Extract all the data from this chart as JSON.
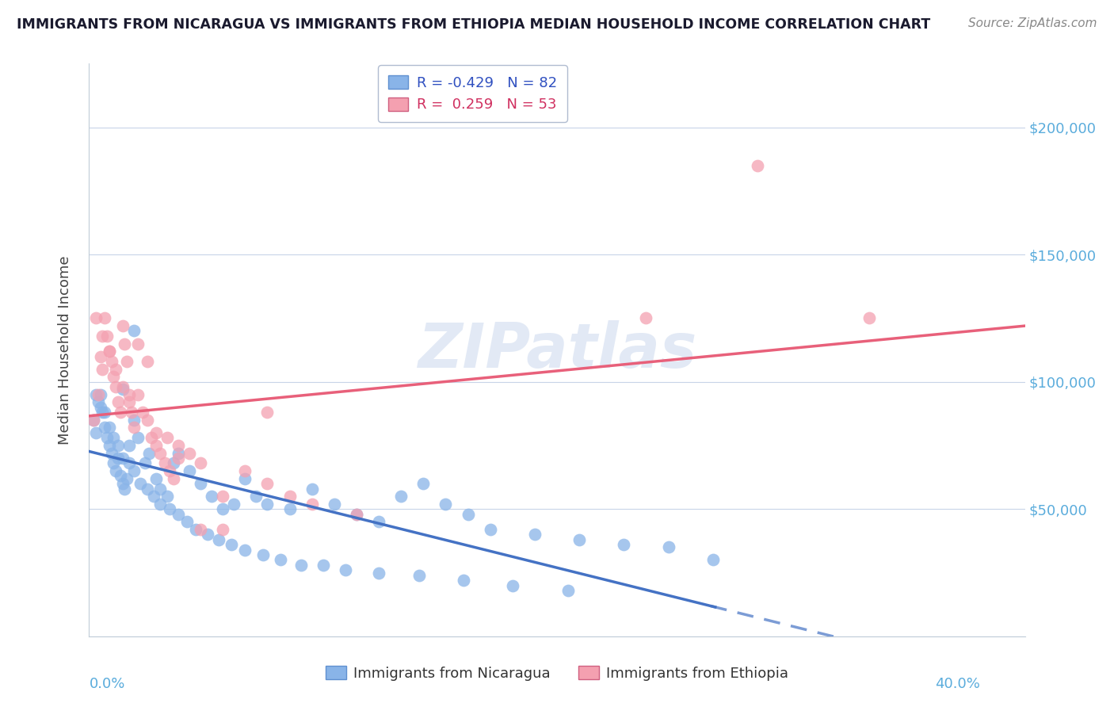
{
  "title": "IMMIGRANTS FROM NICARAGUA VS IMMIGRANTS FROM ETHIOPIA MEDIAN HOUSEHOLD INCOME CORRELATION CHART",
  "source": "Source: ZipAtlas.com",
  "ylabel": "Median Household Income",
  "watermark": "ZIPatlas",
  "xlim": [
    0.0,
    0.42
  ],
  "ylim": [
    0,
    225000
  ],
  "yticks": [
    0,
    50000,
    100000,
    150000,
    200000
  ],
  "ytick_labels": [
    "",
    "$50,000",
    "$100,000",
    "$150,000",
    "$200,000"
  ],
  "blue_color": "#89b4e8",
  "pink_color": "#f4a0b0",
  "blue_line_color": "#4472c4",
  "pink_line_color": "#e8607a",
  "R_nic": -0.429,
  "N_nic": 82,
  "R_eth": 0.259,
  "N_eth": 53,
  "label_nic": "Immigrants from Nicaragua",
  "label_eth": "Immigrants from Ethiopia",
  "nicaragua_x": [
    0.002,
    0.003,
    0.004,
    0.005,
    0.006,
    0.007,
    0.008,
    0.009,
    0.01,
    0.011,
    0.012,
    0.013,
    0.014,
    0.015,
    0.016,
    0.017,
    0.018,
    0.02,
    0.022,
    0.025,
    0.027,
    0.03,
    0.032,
    0.035,
    0.038,
    0.04,
    0.045,
    0.05,
    0.055,
    0.06,
    0.065,
    0.07,
    0.075,
    0.08,
    0.09,
    0.1,
    0.11,
    0.12,
    0.13,
    0.14,
    0.15,
    0.16,
    0.17,
    0.18,
    0.2,
    0.22,
    0.24,
    0.26,
    0.28,
    0.003,
    0.005,
    0.007,
    0.009,
    0.011,
    0.013,
    0.015,
    0.018,
    0.02,
    0.023,
    0.026,
    0.029,
    0.032,
    0.036,
    0.04,
    0.044,
    0.048,
    0.053,
    0.058,
    0.064,
    0.07,
    0.078,
    0.086,
    0.095,
    0.105,
    0.115,
    0.13,
    0.148,
    0.168,
    0.19,
    0.215,
    0.02,
    0.015
  ],
  "nicaragua_y": [
    85000,
    80000,
    92000,
    95000,
    88000,
    82000,
    78000,
    75000,
    72000,
    68000,
    65000,
    70000,
    63000,
    60000,
    58000,
    62000,
    75000,
    85000,
    78000,
    68000,
    72000,
    62000,
    58000,
    55000,
    68000,
    72000,
    65000,
    60000,
    55000,
    50000,
    52000,
    62000,
    55000,
    52000,
    50000,
    58000,
    52000,
    48000,
    45000,
    55000,
    60000,
    52000,
    48000,
    42000,
    40000,
    38000,
    36000,
    35000,
    30000,
    95000,
    90000,
    88000,
    82000,
    78000,
    75000,
    70000,
    68000,
    65000,
    60000,
    58000,
    55000,
    52000,
    50000,
    48000,
    45000,
    42000,
    40000,
    38000,
    36000,
    34000,
    32000,
    30000,
    28000,
    28000,
    26000,
    25000,
    24000,
    22000,
    20000,
    18000,
    120000,
    97000
  ],
  "ethiopia_x": [
    0.002,
    0.004,
    0.005,
    0.006,
    0.007,
    0.008,
    0.009,
    0.01,
    0.011,
    0.012,
    0.013,
    0.014,
    0.015,
    0.016,
    0.017,
    0.018,
    0.019,
    0.02,
    0.022,
    0.024,
    0.026,
    0.028,
    0.03,
    0.032,
    0.034,
    0.036,
    0.038,
    0.04,
    0.045,
    0.05,
    0.06,
    0.07,
    0.08,
    0.09,
    0.1,
    0.12,
    0.003,
    0.006,
    0.009,
    0.012,
    0.015,
    0.018,
    0.022,
    0.026,
    0.03,
    0.035,
    0.04,
    0.05,
    0.06,
    0.08,
    0.3,
    0.35,
    0.25
  ],
  "ethiopia_y": [
    85000,
    95000,
    110000,
    105000,
    125000,
    118000,
    112000,
    108000,
    102000,
    98000,
    92000,
    88000,
    122000,
    115000,
    108000,
    95000,
    88000,
    82000,
    95000,
    88000,
    85000,
    78000,
    75000,
    72000,
    68000,
    65000,
    62000,
    75000,
    72000,
    68000,
    55000,
    65000,
    60000,
    55000,
    52000,
    48000,
    125000,
    118000,
    112000,
    105000,
    98000,
    92000,
    115000,
    108000,
    80000,
    78000,
    70000,
    42000,
    42000,
    88000,
    185000,
    125000,
    125000
  ]
}
